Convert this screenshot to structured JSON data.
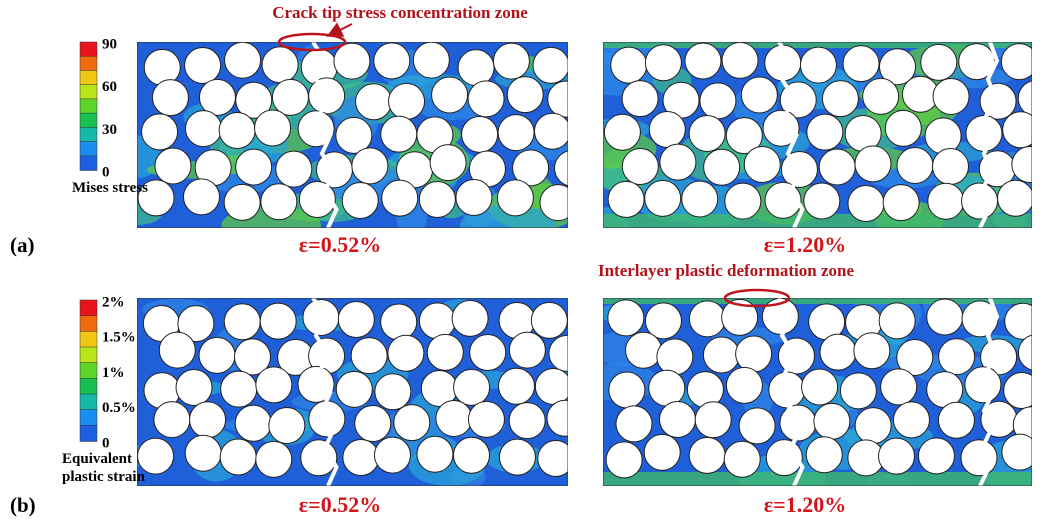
{
  "annotations": {
    "top": "Crack tip stress concentration zone",
    "middle": "Interlayer plastic deformation zone"
  },
  "panels": [
    {
      "label": "(a)",
      "legend": {
        "title": [
          "Mises stress"
        ],
        "ticks": [
          "90",
          "60",
          "30",
          "0"
        ]
      },
      "strains": [
        "ε=0.52%",
        "ε=1.20%"
      ]
    },
    {
      "label": "(b)",
      "legend": {
        "title": [
          "Equivalent",
          "plastic strain"
        ],
        "ticks": [
          "2%",
          "1.5%",
          "1%",
          "0.5%",
          "0"
        ]
      },
      "strains": [
        "ε=0.52%",
        "ε=1.20%"
      ]
    }
  ]
}
